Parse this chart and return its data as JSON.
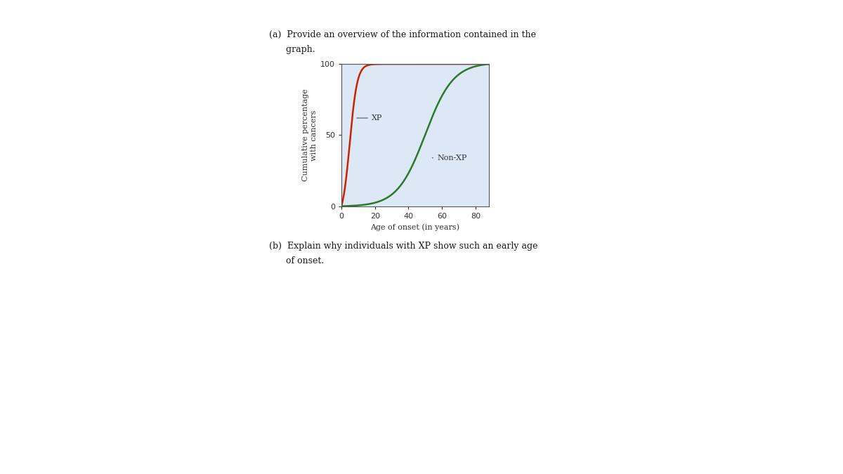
{
  "title_a_line1": "(a)  Provide an overview of the information contained in the",
  "title_a_line2": "      graph.",
  "title_b_line1": "(b)  Explain why individuals with XP show such an early age",
  "title_b_line2": "      of onset.",
  "xlabel": "Age of onset (in years)",
  "ylabel": "Cumulative percentage\nwith cancers",
  "xlim": [
    0,
    88
  ],
  "ylim": [
    0,
    100
  ],
  "xticks": [
    0,
    20,
    40,
    60,
    80
  ],
  "yticks": [
    0,
    50,
    100
  ],
  "xp_color": "#cc2200",
  "nonxp_color": "#2a7a2a",
  "bg_color": "#dce8f5",
  "label_color": "#333333",
  "annot_color": "#555555",
  "xp_label": "XP",
  "nonxp_label": "Non-XP"
}
